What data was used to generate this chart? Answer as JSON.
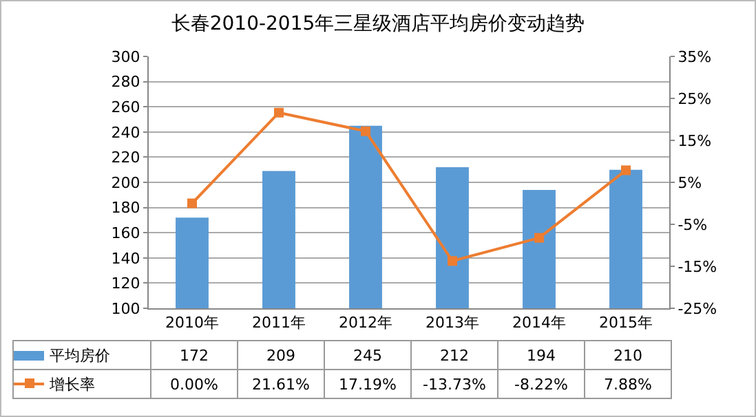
{
  "chart_data": {
    "type": "bar",
    "title": "长春2010-2015年三星级酒店平均房价变动趋势",
    "categories": [
      "2010年",
      "2011年",
      "2012年",
      "2013年",
      "2014年",
      "2015年"
    ],
    "series": [
      {
        "name": "平均房价",
        "color": "#5b9bd5",
        "values": [
          172,
          209,
          245,
          212,
          194,
          210
        ],
        "value_labels": [
          "172",
          "209",
          "245",
          "212",
          "194",
          "210"
        ]
      },
      {
        "name": "增长率",
        "type": "line",
        "axis": "y2",
        "color": "#ed7d31",
        "values": [
          0.0,
          21.61,
          17.19,
          -13.73,
          -8.22,
          7.88
        ],
        "value_labels": [
          "0.00%",
          "21.61%",
          "17.19%",
          "-13.73%",
          "-8.22%",
          "7.88%"
        ]
      }
    ],
    "ylim": [
      100,
      300
    ],
    "yticks": [
      100,
      120,
      140,
      160,
      180,
      200,
      220,
      240,
      260,
      280,
      300
    ],
    "y2lim": [
      -25,
      35
    ],
    "y2ticks": [
      {
        "value": -25,
        "label": "-25%"
      },
      {
        "value": -15,
        "label": "-15%"
      },
      {
        "value": -5,
        "label": "-5%"
      },
      {
        "value": 5,
        "label": "5%"
      },
      {
        "value": 15,
        "label": "15%"
      },
      {
        "value": 25,
        "label": "25%"
      },
      {
        "value": 35,
        "label": "35%"
      }
    ],
    "grid": "y",
    "legend": "bottom",
    "marker": "square",
    "line_style": "solid"
  }
}
